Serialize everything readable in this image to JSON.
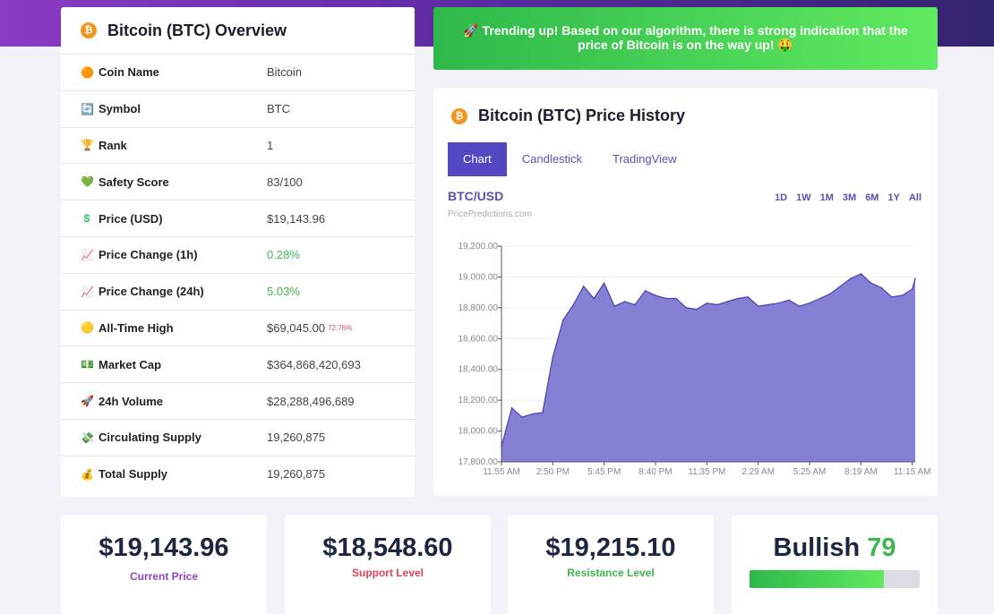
{
  "overview": {
    "title": "Bitcoin (BTC) Overview",
    "coin_icon": "bitcoin-icon",
    "rows": [
      {
        "icon": "🟠",
        "label": "Coin Name",
        "value": "Bitcoin"
      },
      {
        "icon": "🔄",
        "label": "Symbol",
        "value": "BTC"
      },
      {
        "icon": "🏆",
        "label": "Rank",
        "value": "1"
      },
      {
        "icon": "💚",
        "label": "Safety Score",
        "value": "83/100"
      },
      {
        "icon": "$",
        "label": "Price (USD)",
        "value": "$19,143.96"
      },
      {
        "icon": "📈",
        "label": "Price Change (1h)",
        "value": "0.28%",
        "positive": true
      },
      {
        "icon": "📈",
        "label": "Price Change (24h)",
        "value": "5.03%",
        "positive": true
      },
      {
        "icon": "🟡",
        "label": "All-Time High",
        "value": "$69,045.00",
        "extra": "72.76%"
      },
      {
        "icon": "💵",
        "label": "Market Cap",
        "value": "$364,868,420,693"
      },
      {
        "icon": "🚀",
        "label": "24h Volume",
        "value": "$28,288,496,689"
      },
      {
        "icon": "💸",
        "label": "Circulating Supply",
        "value": "19,260,875"
      },
      {
        "icon": "💰",
        "label": "Total Supply",
        "value": "19,260,875"
      }
    ]
  },
  "banner": {
    "text": "🚀 Trending up! Based on our algorithm, there is strong indication that the price of Bitcoin is on the way up! 🤑"
  },
  "history": {
    "title": "Bitcoin (BTC) Price History",
    "tabs": [
      "Chart",
      "Candlestick",
      "TradingView"
    ],
    "active_tab": "Chart",
    "pair": "BTC/USD",
    "source": "PricePredictions.com",
    "ranges": [
      "1D",
      "1W",
      "1M",
      "3M",
      "6M",
      "1Y",
      "All"
    ]
  },
  "chart_data": {
    "type": "area",
    "color": "#8580d4",
    "line_color": "#4b3fb0",
    "ylim": [
      17800,
      19200
    ],
    "yticks": [
      "17,800.00",
      "18,000.00",
      "18,200.00",
      "18,400.00",
      "18,600.00",
      "18,800.00",
      "19,000.00",
      "19,200.00"
    ],
    "xticks": [
      "11:55 AM",
      "2:50 PM",
      "5:45 PM",
      "8:40 PM",
      "11:35 PM",
      "2:29 AM",
      "5:25 AM",
      "8:19 AM",
      "11:15 AM"
    ],
    "x": [
      "11:55 AM",
      "12:30 PM",
      "1:05 PM",
      "1:40 PM",
      "2:15 PM",
      "2:50 PM",
      "3:25 PM",
      "4:00 PM",
      "4:35 PM",
      "5:10 PM",
      "5:45 PM",
      "6:20 PM",
      "6:55 PM",
      "7:30 PM",
      "8:05 PM",
      "8:40 PM",
      "9:15 PM",
      "9:50 PM",
      "10:25 PM",
      "11:00 PM",
      "11:35 PM",
      "12:10 AM",
      "12:45 AM",
      "1:20 AM",
      "1:55 AM",
      "2:29 AM",
      "3:04 AM",
      "3:39 AM",
      "4:14 AM",
      "4:49 AM",
      "5:25 AM",
      "6:00 AM",
      "6:35 AM",
      "7:10 AM",
      "7:45 AM",
      "8:19 AM",
      "8:54 AM",
      "9:29 AM",
      "10:04 AM",
      "10:39 AM",
      "11:15 AM",
      "11:25 AM"
    ],
    "values": [
      17900,
      18150,
      18090,
      18110,
      18120,
      18480,
      18720,
      18820,
      18940,
      18860,
      18960,
      18810,
      18840,
      18820,
      18910,
      18880,
      18860,
      18860,
      18800,
      18790,
      18830,
      18820,
      18840,
      18860,
      18870,
      18810,
      18820,
      18830,
      18850,
      18810,
      18830,
      18860,
      18890,
      18940,
      18990,
      19020,
      18960,
      18930,
      18870,
      18880,
      18920,
      18990
    ]
  },
  "stats": [
    {
      "value": "$19,143.96",
      "label": "Current Price",
      "color": "#8e44c0"
    },
    {
      "value": "$18,548.60",
      "label": "Support Level",
      "color": "#e0445a"
    },
    {
      "value": "$19,215.10",
      "label": "Resistance Level",
      "color": "#3fb54f"
    }
  ],
  "sentiment": {
    "label": "Bullish",
    "score": "79",
    "percent": 79,
    "score_color": "#3fb54f"
  }
}
